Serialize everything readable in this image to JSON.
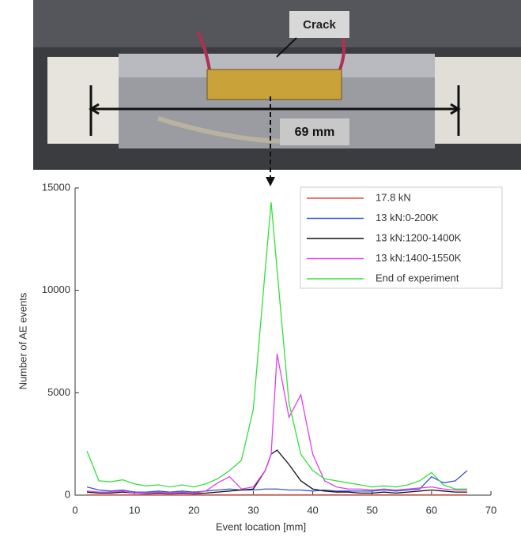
{
  "chart_data": {
    "type": "line",
    "annotations": {
      "crack": "Crack",
      "length": "69 mm"
    },
    "xlabel": "Event location [mm]",
    "ylabel": "Number of AE events",
    "x": [
      2,
      4,
      6,
      8,
      10,
      12,
      14,
      16,
      18,
      20,
      22,
      24,
      26,
      28,
      30,
      32,
      33,
      34,
      36,
      38,
      40,
      42,
      44,
      46,
      48,
      50,
      52,
      54,
      56,
      58,
      60,
      62,
      64,
      66
    ],
    "series": [
      {
        "name": "17.8 kN",
        "color": "#e8473f",
        "values": [
          20,
          20,
          20,
          20,
          20,
          20,
          20,
          20,
          20,
          20,
          20,
          20,
          20,
          20,
          20,
          20,
          20,
          20,
          20,
          20,
          20,
          20,
          20,
          20,
          20,
          20,
          20,
          20,
          20,
          20,
          20,
          20,
          20,
          20
        ]
      },
      {
        "name": "13 kN:0-200K",
        "color": "#3a52d4",
        "values": [
          400,
          250,
          200,
          250,
          150,
          150,
          200,
          150,
          200,
          150,
          200,
          250,
          300,
          250,
          250,
          300,
          300,
          300,
          250,
          250,
          200,
          250,
          200,
          200,
          200,
          200,
          250,
          200,
          250,
          300,
          900,
          600,
          700,
          1200
        ]
      },
      {
        "name": "13 kN:1200-1400K",
        "color": "#111111",
        "values": [
          150,
          100,
          100,
          150,
          100,
          80,
          100,
          80,
          100,
          80,
          100,
          150,
          200,
          250,
          300,
          1200,
          2000,
          2200,
          1500,
          700,
          300,
          200,
          150,
          150,
          100,
          100,
          150,
          100,
          150,
          200,
          250,
          200,
          150,
          150
        ]
      },
      {
        "name": "13 kN:1400-1550K",
        "color": "#e040e8",
        "values": [
          200,
          150,
          150,
          200,
          100,
          100,
          150,
          100,
          150,
          100,
          200,
          600,
          900,
          300,
          400,
          1200,
          2000,
          6900,
          3800,
          4900,
          2000,
          700,
          400,
          300,
          300,
          250,
          300,
          250,
          300,
          350,
          400,
          300,
          250,
          250
        ]
      },
      {
        "name": "End of experiment",
        "color": "#33e03a",
        "values": [
          2150,
          700,
          650,
          750,
          550,
          450,
          500,
          400,
          500,
          400,
          550,
          800,
          1200,
          1700,
          4200,
          11000,
          14300,
          11000,
          4500,
          2000,
          1200,
          800,
          700,
          600,
          500,
          400,
          450,
          400,
          500,
          700,
          1100,
          500,
          300,
          300
        ]
      }
    ],
    "xlim": [
      0,
      70
    ],
    "xticks": [
      0,
      10,
      20,
      30,
      40,
      50,
      60,
      70
    ],
    "ylim": [
      0,
      15000
    ],
    "yticks": [
      0,
      5000,
      10000,
      15000
    ],
    "legend": "upper right"
  }
}
